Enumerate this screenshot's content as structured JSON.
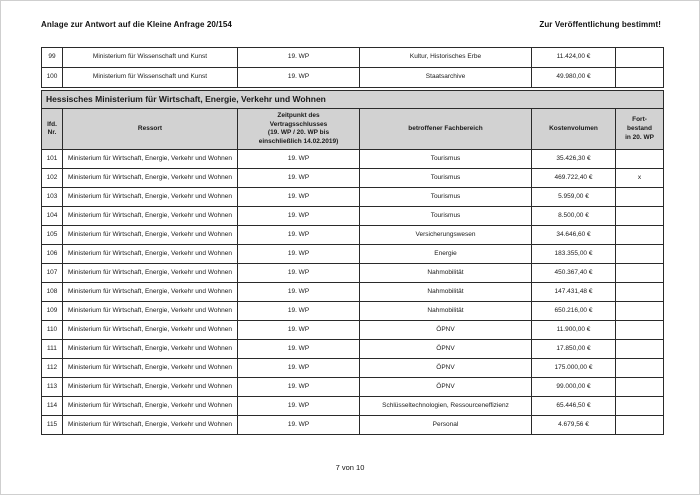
{
  "page_header": {
    "left": "Anlage zur Antwort auf die Kleine Anfrage 20/154",
    "right": "Zur Veröffentlichung bestimmt!"
  },
  "table": {
    "columns": {
      "nr": "lfd.\nNr.",
      "ressort": "Ressort",
      "zeitpunkt": "Zeitpunkt des\nVertragsschlusses\n(19. WP / 20. WP bis\neinschließlich 14.02.2019)",
      "fachbereich": "betroffener Fachbereich",
      "kosten": "Kostenvolumen",
      "fortbestand": "Fort-\nbestand\nin 20. WP"
    },
    "section_header": "Hessisches Ministerium für Wirtschaft, Energie, Verkehr und Wohnen",
    "top_rows": [
      {
        "nr": "99",
        "ressort": "Ministerium für Wissenschaft und Kunst",
        "zeitpunkt": "19. WP",
        "fachbereich": "Kultur, Historisches Erbe",
        "kosten": "11.424,00 €",
        "fortbestand": ""
      },
      {
        "nr": "100",
        "ressort": "Ministerium für Wissenschaft und Kunst",
        "zeitpunkt": "19. WP",
        "fachbereich": "Staatsarchive",
        "kosten": "49.980,00 €",
        "fortbestand": ""
      }
    ],
    "rows": [
      {
        "nr": "101",
        "ressort": "Ministerium für Wirtschaft, Energie, Verkehr und Wohnen",
        "zeitpunkt": "19. WP",
        "fachbereich": "Tourismus",
        "kosten": "35.426,30 €",
        "fortbestand": ""
      },
      {
        "nr": "102",
        "ressort": "Ministerium für Wirtschaft, Energie, Verkehr und Wohnen",
        "zeitpunkt": "19. WP",
        "fachbereich": "Tourismus",
        "kosten": "469.722,40 €",
        "fortbestand": "x"
      },
      {
        "nr": "103",
        "ressort": "Ministerium für Wirtschaft, Energie, Verkehr und Wohnen",
        "zeitpunkt": "19. WP",
        "fachbereich": "Tourismus",
        "kosten": "5.959,00 €",
        "fortbestand": ""
      },
      {
        "nr": "104",
        "ressort": "Ministerium für Wirtschaft, Energie, Verkehr und Wohnen",
        "zeitpunkt": "19. WP",
        "fachbereich": "Tourismus",
        "kosten": "8.500,00 €",
        "fortbestand": ""
      },
      {
        "nr": "105",
        "ressort": "Ministerium für Wirtschaft, Energie, Verkehr und Wohnen",
        "zeitpunkt": "19. WP",
        "fachbereich": "Versicherungswesen",
        "kosten": "34.646,60 €",
        "fortbestand": ""
      },
      {
        "nr": "106",
        "ressort": "Ministerium für Wirtschaft, Energie, Verkehr und Wohnen",
        "zeitpunkt": "19. WP",
        "fachbereich": "Energie",
        "kosten": "183.355,00 €",
        "fortbestand": ""
      },
      {
        "nr": "107",
        "ressort": "Ministerium für Wirtschaft, Energie, Verkehr und Wohnen",
        "zeitpunkt": "19. WP",
        "fachbereich": "Nahmobilität",
        "kosten": "450.367,40 €",
        "fortbestand": ""
      },
      {
        "nr": "108",
        "ressort": "Ministerium für Wirtschaft, Energie, Verkehr und Wohnen",
        "zeitpunkt": "19. WP",
        "fachbereich": "Nahmobilität",
        "kosten": "147.431,48 €",
        "fortbestand": ""
      },
      {
        "nr": "109",
        "ressort": "Ministerium für Wirtschaft, Energie, Verkehr und Wohnen",
        "zeitpunkt": "19. WP",
        "fachbereich": "Nahmobilität",
        "kosten": "650.216,00 €",
        "fortbestand": ""
      },
      {
        "nr": "110",
        "ressort": "Ministerium für Wirtschaft, Energie, Verkehr und Wohnen",
        "zeitpunkt": "19. WP",
        "fachbereich": "ÖPNV",
        "kosten": "11.900,00 €",
        "fortbestand": ""
      },
      {
        "nr": "111",
        "ressort": "Ministerium für Wirtschaft, Energie, Verkehr und Wohnen",
        "zeitpunkt": "19. WP",
        "fachbereich": "ÖPNV",
        "kosten": "17.850,00 €",
        "fortbestand": ""
      },
      {
        "nr": "112",
        "ressort": "Ministerium für Wirtschaft, Energie, Verkehr und Wohnen",
        "zeitpunkt": "19. WP",
        "fachbereich": "ÖPNV",
        "kosten": "175.000,00 €",
        "fortbestand": ""
      },
      {
        "nr": "113",
        "ressort": "Ministerium für Wirtschaft, Energie, Verkehr und Wohnen",
        "zeitpunkt": "19. WP",
        "fachbereich": "ÖPNV",
        "kosten": "99.000,00 €",
        "fortbestand": ""
      },
      {
        "nr": "114",
        "ressort": "Ministerium für Wirtschaft, Energie, Verkehr und Wohnen",
        "zeitpunkt": "19. WP",
        "fachbereich": "Schlüsseltechnologien, Ressourceneffizienz",
        "kosten": "65.446,50 €",
        "fortbestand": ""
      },
      {
        "nr": "115",
        "ressort": "Ministerium für Wirtschaft, Energie, Verkehr und Wohnen",
        "zeitpunkt": "19. WP",
        "fachbereich": "Personal",
        "kosten": "4.679,56 €",
        "fortbestand": ""
      }
    ]
  },
  "footer": {
    "page_indicator": "7 von 10"
  },
  "colors": {
    "header_bg": "#d2d2d2",
    "border": "#1a1a1a",
    "page_bg": "#ffffff"
  }
}
